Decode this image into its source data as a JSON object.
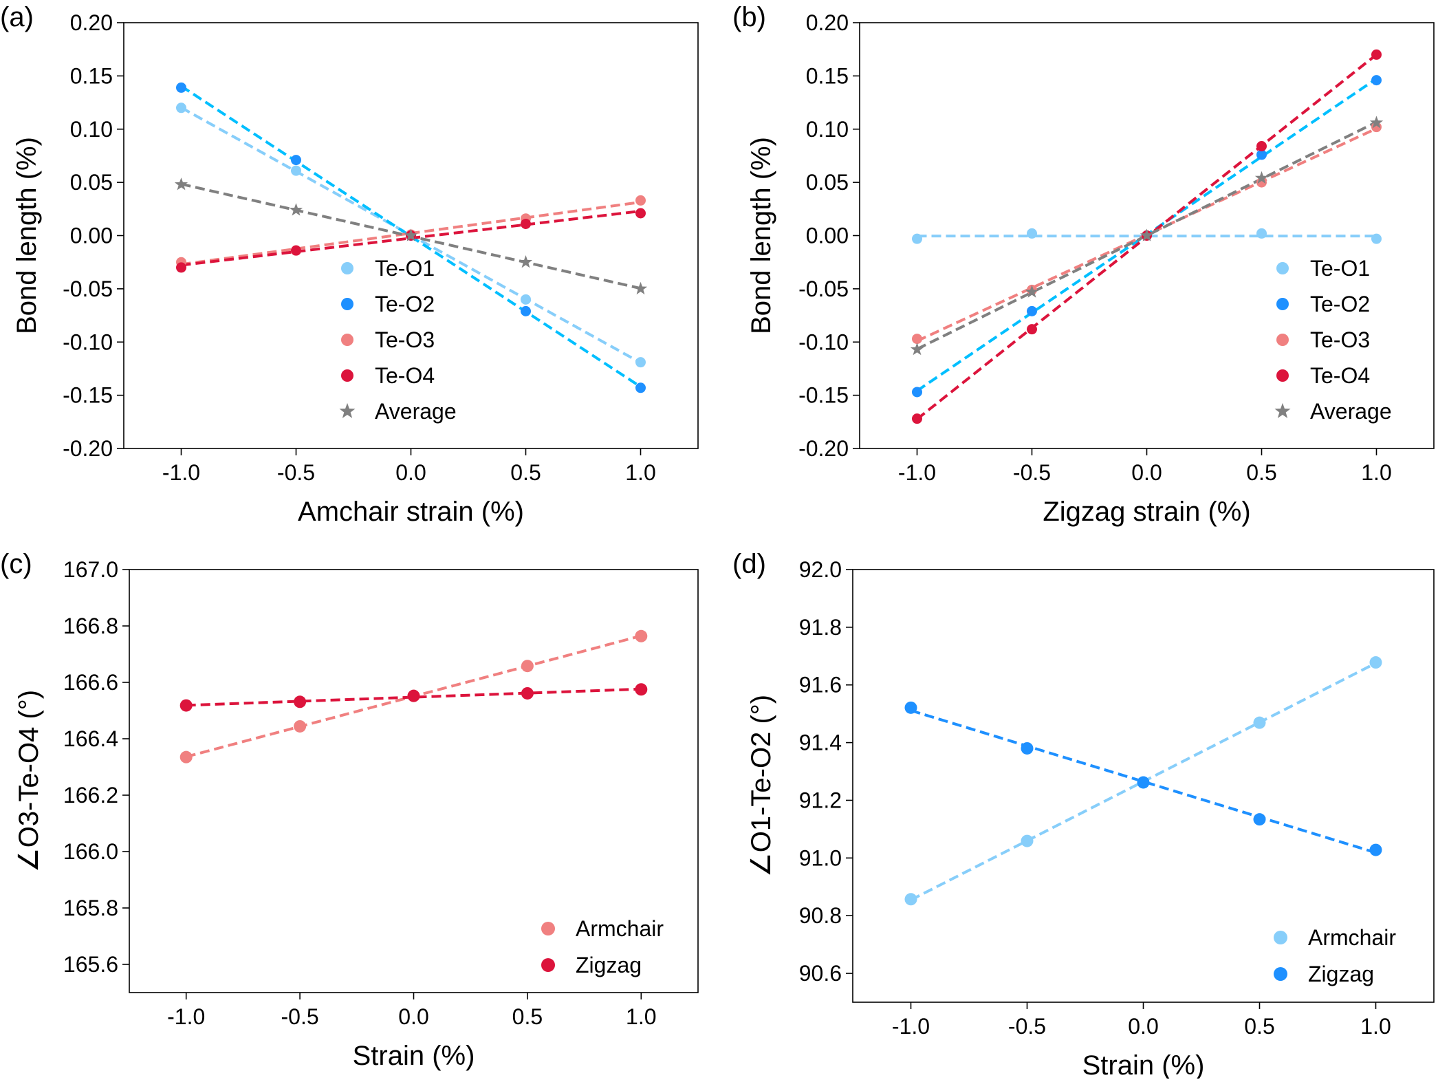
{
  "chart_data": [
    {
      "panel_label": "(a)",
      "type": "scatter",
      "xlabel": "Amchair strain (%)",
      "ylabel": "Bond length (%)",
      "xlim": [
        -1.25,
        1.25
      ],
      "ylim": [
        -0.2,
        0.2
      ],
      "xticks": [
        -1.0,
        -0.5,
        0.0,
        0.5,
        1.0
      ],
      "xtick_labels": [
        "-1.0",
        "-0.5",
        "0.0",
        "0.5",
        "1.0"
      ],
      "yticks": [
        0.2,
        0.15,
        0.1,
        0.05,
        0.0,
        -0.05,
        -0.1,
        -0.15,
        -0.2
      ],
      "ytick_labels": [
        "0.20",
        "0.15",
        "0.10",
        "0.05",
        "0.00",
        "-0.05",
        "-0.10",
        "-0.15",
        "-0.20"
      ],
      "grid": false,
      "legend_position": "lower-center",
      "x": [
        -1.0,
        -0.5,
        0.0,
        0.5,
        1.0
      ],
      "series": [
        {
          "name": "Te-O1",
          "marker": "circle",
          "color": "#87cefa",
          "fit_color": "#87cefa",
          "values": [
            0.12,
            0.061,
            0.0,
            -0.06,
            -0.119
          ]
        },
        {
          "name": "Te-O2",
          "marker": "circle",
          "color": "#1e90ff",
          "fit_color": "#00bfff",
          "values": [
            0.139,
            0.071,
            0.0,
            -0.071,
            -0.143
          ]
        },
        {
          "name": "Te-O3",
          "marker": "circle",
          "color": "#f08080",
          "fit_color": "#f08080",
          "values": [
            -0.025,
            -0.014,
            0.001,
            0.016,
            0.033
          ]
        },
        {
          "name": "Te-O4",
          "marker": "circle",
          "color": "#dc143c",
          "fit_color": "#dc143c",
          "values": [
            -0.03,
            -0.014,
            0.0,
            0.011,
            0.021
          ]
        },
        {
          "name": "Average",
          "marker": "star",
          "color": "#808080",
          "fit_color": "#808080",
          "values": [
            0.048,
            0.024,
            0.0,
            -0.025,
            -0.05
          ]
        }
      ]
    },
    {
      "panel_label": "(b)",
      "type": "scatter",
      "xlabel": "Zigzag strain (%)",
      "ylabel": "Bond length (%)",
      "xlim": [
        -1.25,
        1.25
      ],
      "ylim": [
        -0.2,
        0.2
      ],
      "xticks": [
        -1.0,
        -0.5,
        0.0,
        0.5,
        1.0
      ],
      "xtick_labels": [
        "-1.0",
        "-0.5",
        "0.0",
        "0.5",
        "1.0"
      ],
      "yticks": [
        0.2,
        0.15,
        0.1,
        0.05,
        0.0,
        -0.05,
        -0.1,
        -0.15,
        -0.2
      ],
      "ytick_labels": [
        "0.20",
        "0.15",
        "0.10",
        "0.05",
        "0.00",
        "-0.05",
        "-0.10",
        "-0.15",
        "-0.20"
      ],
      "grid": false,
      "legend_position": "lower-right",
      "x": [
        -1.0,
        -0.5,
        0.0,
        0.5,
        1.0
      ],
      "series": [
        {
          "name": "Te-O1",
          "marker": "circle",
          "color": "#87cefa",
          "fit_color": "#87cefa",
          "values": [
            -0.003,
            0.002,
            0.0,
            0.002,
            -0.003
          ]
        },
        {
          "name": "Te-O2",
          "marker": "circle",
          "color": "#1e90ff",
          "fit_color": "#00bfff",
          "values": [
            -0.147,
            -0.071,
            0.0,
            0.076,
            0.146
          ]
        },
        {
          "name": "Te-O3",
          "marker": "circle",
          "color": "#f08080",
          "fit_color": "#f08080",
          "values": [
            -0.097,
            -0.051,
            0.0,
            0.05,
            0.102
          ]
        },
        {
          "name": "Te-O4",
          "marker": "circle",
          "color": "#dc143c",
          "fit_color": "#dc143c",
          "values": [
            -0.172,
            -0.088,
            0.0,
            0.084,
            0.17
          ]
        },
        {
          "name": "Average",
          "marker": "star",
          "color": "#808080",
          "fit_color": "#808080",
          "values": [
            -0.107,
            -0.053,
            0.0,
            0.054,
            0.106
          ]
        }
      ]
    },
    {
      "panel_label": "(c)",
      "type": "scatter",
      "xlabel": "Strain (%)",
      "ylabel": "∠O3-Te-O4 (°)",
      "xlim": [
        -1.25,
        1.25
      ],
      "ylim": [
        165.5,
        167.0
      ],
      "xticks": [
        -1.0,
        -0.5,
        0.0,
        0.5,
        1.0
      ],
      "xtick_labels": [
        "-1.0",
        "-0.5",
        "0.0",
        "0.5",
        "1.0"
      ],
      "yticks": [
        167.0,
        166.8,
        166.6,
        166.4,
        166.2,
        166.0,
        165.8,
        165.6
      ],
      "ytick_labels": [
        "167.0",
        "166.8",
        "166.6",
        "166.4",
        "166.2",
        "166.0",
        "165.8",
        "165.6"
      ],
      "grid": false,
      "legend_position": "lower-right",
      "x": [
        -1.0,
        -0.5,
        0.0,
        0.5,
        1.0
      ],
      "series": [
        {
          "name": "Armchair",
          "marker": "circle",
          "color": "#f08080",
          "fit_color": "#f08080",
          "values": [
            166.335,
            166.444,
            166.552,
            166.658,
            166.764
          ]
        },
        {
          "name": "Zigzag",
          "marker": "circle",
          "color": "#dc143c",
          "fit_color": "#dc143c",
          "values": [
            166.518,
            166.531,
            166.552,
            166.561,
            166.575
          ]
        }
      ]
    },
    {
      "panel_label": "(d)",
      "type": "scatter",
      "xlabel": "Strain (%)",
      "ylabel": "∠O1-Te-O2 (°)",
      "xlim": [
        -1.25,
        1.25
      ],
      "ylim": [
        90.5,
        92.0
      ],
      "xticks": [
        -1.0,
        -0.5,
        0.0,
        0.5,
        1.0
      ],
      "xtick_labels": [
        "-1.0",
        "-0.5",
        "0.0",
        "0.5",
        "1.0"
      ],
      "yticks": [
        92.0,
        91.8,
        91.6,
        91.4,
        91.2,
        91.0,
        90.8,
        90.6
      ],
      "ytick_labels": [
        "92.0",
        "91.8",
        "91.6",
        "91.4",
        "91.2",
        "91.0",
        "90.8",
        "90.6"
      ],
      "grid": false,
      "legend_position": "lower-right",
      "x": [
        -1.0,
        -0.5,
        0.0,
        0.5,
        1.0
      ],
      "series": [
        {
          "name": "Armchair",
          "marker": "circle",
          "color": "#87cefa",
          "fit_color": "#87cefa",
          "values": [
            90.857,
            91.059,
            91.262,
            91.469,
            91.678
          ]
        },
        {
          "name": "Zigzag",
          "marker": "circle",
          "color": "#1e90ff",
          "fit_color": "#1e90ff",
          "values": [
            91.521,
            91.38,
            91.262,
            91.134,
            91.028
          ]
        }
      ]
    }
  ]
}
